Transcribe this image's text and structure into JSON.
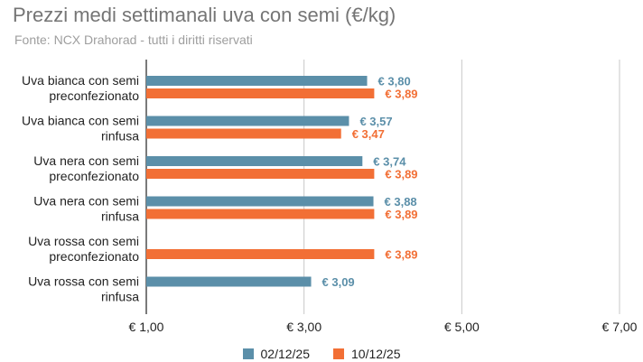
{
  "chart_data": {
    "type": "bar",
    "orientation": "horizontal",
    "title": "Prezzi medi settimanali uva con semi (€/kg)",
    "subtitle": "Fonte: NCX Drahorad - tutti i diritti riservati",
    "categories": [
      [
        "Uva bianca con semi",
        "preconfezionato"
      ],
      [
        "Uva bianca con semi",
        "rinfusa"
      ],
      [
        "Uva nera con semi",
        "preconfezionato"
      ],
      [
        "Uva nera con semi",
        "rinfusa"
      ],
      [
        "Uva rossa con semi",
        "preconfezionato"
      ],
      [
        "Uva rossa con semi",
        "rinfusa"
      ]
    ],
    "series": [
      {
        "name": "02/12/25",
        "color": "#5b8fa9",
        "values": [
          3.8,
          3.57,
          3.74,
          3.88,
          null,
          3.09
        ],
        "labels": [
          "€ 3,80",
          "€ 3,57",
          "€ 3,74",
          "€ 3,88",
          "",
          "€ 3,09"
        ]
      },
      {
        "name": "10/12/25",
        "color": "#f26f35",
        "values": [
          3.89,
          3.47,
          3.89,
          3.89,
          3.89,
          null
        ],
        "labels": [
          "€ 3,89",
          "€ 3,47",
          "€ 3,89",
          "€ 3,89",
          "€ 3,89",
          ""
        ]
      }
    ],
    "xlim": [
      1,
      7
    ],
    "x_ticks": [
      1,
      3,
      5,
      7
    ],
    "x_tick_labels": [
      "€ 1,00",
      "€ 3,00",
      "€ 5,00",
      "€ 7,00"
    ],
    "grid": true,
    "legend": "bottom",
    "xlabel": "",
    "ylabel": ""
  }
}
